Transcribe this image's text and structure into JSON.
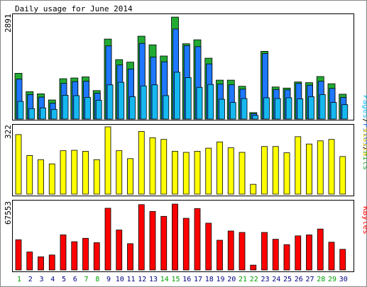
{
  "title": "Daily usage for June 2014",
  "colors": {
    "pages": "#00805c",
    "files": "#0040ff",
    "hits": "#00a000",
    "hits_bar": "#22aa33",
    "files_bar": "#1e78ff",
    "pages_bar": "#16b8f0",
    "visits": "#ffff00",
    "kbytes": "#ff0000",
    "weekend_day": "#00a000",
    "weekday": "#000080"
  },
  "chart_data": [
    {
      "type": "bar",
      "title": "Daily usage for June 2014",
      "panel": "hits-files-pages",
      "ymax_label": "2891",
      "ylabel_parts": [
        "Pages",
        "/",
        "Files",
        "/",
        "Hits"
      ],
      "ylim": [
        0,
        2891
      ],
      "categories": [
        "1",
        "2",
        "3",
        "4",
        "5",
        "6",
        "7",
        "8",
        "9",
        "10",
        "11",
        "12",
        "13",
        "14",
        "15",
        "16",
        "17",
        "18",
        "19",
        "20",
        "21",
        "22",
        "23",
        "24",
        "25",
        "26",
        "27",
        "28",
        "29",
        "30"
      ],
      "series": [
        {
          "name": "Hits",
          "values": [
            1270,
            760,
            700,
            530,
            1120,
            1140,
            1170,
            790,
            2220,
            1650,
            1580,
            2300,
            2060,
            1750,
            2830,
            2090,
            2200,
            1690,
            1080,
            1080,
            910,
            180,
            1880,
            890,
            860,
            1030,
            1010,
            1180,
            980,
            690
          ]
        },
        {
          "name": "Files",
          "values": [
            1110,
            680,
            610,
            440,
            990,
            1040,
            1050,
            720,
            2030,
            1500,
            1390,
            2100,
            1720,
            1590,
            2500,
            2040,
            2010,
            1530,
            970,
            950,
            830,
            150,
            1820,
            820,
            810,
            990,
            940,
            1050,
            850,
            600
          ]
        },
        {
          "name": "Pages",
          "values": [
            490,
            290,
            310,
            270,
            660,
            650,
            600,
            520,
            950,
            1020,
            620,
            920,
            950,
            650,
            1300,
            1150,
            880,
            960,
            550,
            460,
            570,
            100,
            590,
            570,
            590,
            560,
            620,
            680,
            460,
            400
          ]
        }
      ]
    },
    {
      "type": "bar",
      "panel": "visits",
      "ymax_label": "322",
      "ylabel": "Visits",
      "ylim": [
        0,
        322
      ],
      "categories": [
        "1",
        "2",
        "3",
        "4",
        "5",
        "6",
        "7",
        "8",
        "9",
        "10",
        "11",
        "12",
        "13",
        "14",
        "15",
        "16",
        "17",
        "18",
        "19",
        "20",
        "21",
        "22",
        "23",
        "24",
        "25",
        "26",
        "27",
        "28",
        "29",
        "30"
      ],
      "series": [
        {
          "name": "Visits",
          "values": [
            285,
            185,
            165,
            145,
            208,
            210,
            205,
            165,
            322,
            208,
            170,
            300,
            270,
            262,
            205,
            200,
            205,
            220,
            250,
            222,
            200,
            47,
            228,
            228,
            198,
            275,
            240,
            255,
            262,
            180
          ]
        }
      ]
    },
    {
      "type": "bar",
      "panel": "kbytes",
      "ymax_label": "67553",
      "ylabel": "KBytes",
      "ylim": [
        0,
        67553
      ],
      "categories": [
        "1",
        "2",
        "3",
        "4",
        "5",
        "6",
        "7",
        "8",
        "9",
        "10",
        "11",
        "12",
        "13",
        "14",
        "15",
        "16",
        "17",
        "18",
        "19",
        "20",
        "21",
        "22",
        "23",
        "24",
        "25",
        "26",
        "27",
        "28",
        "29",
        "30"
      ],
      "series": [
        {
          "name": "KBytes",
          "values": [
            31000,
            18500,
            13500,
            15400,
            36000,
            29000,
            32500,
            28000,
            63300,
            41000,
            27000,
            67000,
            60000,
            55000,
            67553,
            53000,
            63000,
            48000,
            30500,
            40000,
            38500,
            5000,
            38500,
            31500,
            26000,
            35000,
            36000,
            42000,
            28500,
            21200
          ]
        }
      ]
    }
  ],
  "day_labels": [
    "1",
    "2",
    "3",
    "4",
    "5",
    "6",
    "7",
    "8",
    "9",
    "10",
    "11",
    "12",
    "13",
    "14",
    "15",
    "16",
    "17",
    "18",
    "19",
    "20",
    "21",
    "22",
    "23",
    "24",
    "25",
    "26",
    "27",
    "28",
    "29",
    "30"
  ],
  "weekend_days": [
    1,
    7,
    8,
    14,
    15,
    21,
    22,
    28,
    29
  ]
}
